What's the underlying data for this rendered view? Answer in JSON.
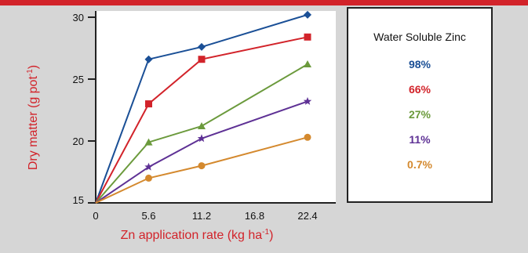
{
  "chart_data": {
    "type": "line",
    "x": [
      0,
      5.6,
      11.2,
      16.8,
      22.4
    ],
    "x_tick_labels": [
      "0",
      "5.6",
      "11.2",
      "16.8",
      "22.4"
    ],
    "y_ticks": [
      15,
      20,
      25,
      30
    ],
    "ylim": [
      15,
      30.5
    ],
    "xlim": [
      0,
      22.4
    ],
    "xlabel_parts": {
      "main": "Zn application rate (kg ha",
      "sup": "-1",
      "end": ")"
    },
    "ylabel_parts": {
      "main": "Dry matter (g pot",
      "sup": "-1",
      "end": ")"
    },
    "grid": false,
    "legend_position": "right",
    "legend_title": "Water Soluble Zinc",
    "series": [
      {
        "name": "98%",
        "color": "#1a4f96",
        "marker": "diamond",
        "points": [
          [
            0,
            15.0
          ],
          [
            5.6,
            26.6
          ],
          [
            11.2,
            27.6
          ],
          [
            22.4,
            30.2
          ]
        ]
      },
      {
        "name": "66%",
        "color": "#d2232a",
        "marker": "square",
        "points": [
          [
            0,
            15.0
          ],
          [
            5.6,
            23.0
          ],
          [
            11.2,
            26.6
          ],
          [
            22.4,
            28.4
          ]
        ]
      },
      {
        "name": "27%",
        "color": "#6b9a3c",
        "marker": "triangle",
        "points": [
          [
            0,
            15.0
          ],
          [
            5.6,
            19.9
          ],
          [
            11.2,
            21.2
          ],
          [
            22.4,
            26.2
          ]
        ]
      },
      {
        "name": "11%",
        "color": "#5e3195",
        "marker": "star",
        "points": [
          [
            0,
            15.0
          ],
          [
            5.6,
            17.9
          ],
          [
            11.2,
            20.2
          ],
          [
            22.4,
            23.2
          ]
        ]
      },
      {
        "name": "0.7%",
        "color": "#d4892e",
        "marker": "circle",
        "points": [
          [
            0,
            15.0
          ],
          [
            5.6,
            17.0
          ],
          [
            11.2,
            18.0
          ],
          [
            22.4,
            20.3
          ]
        ]
      }
    ]
  }
}
